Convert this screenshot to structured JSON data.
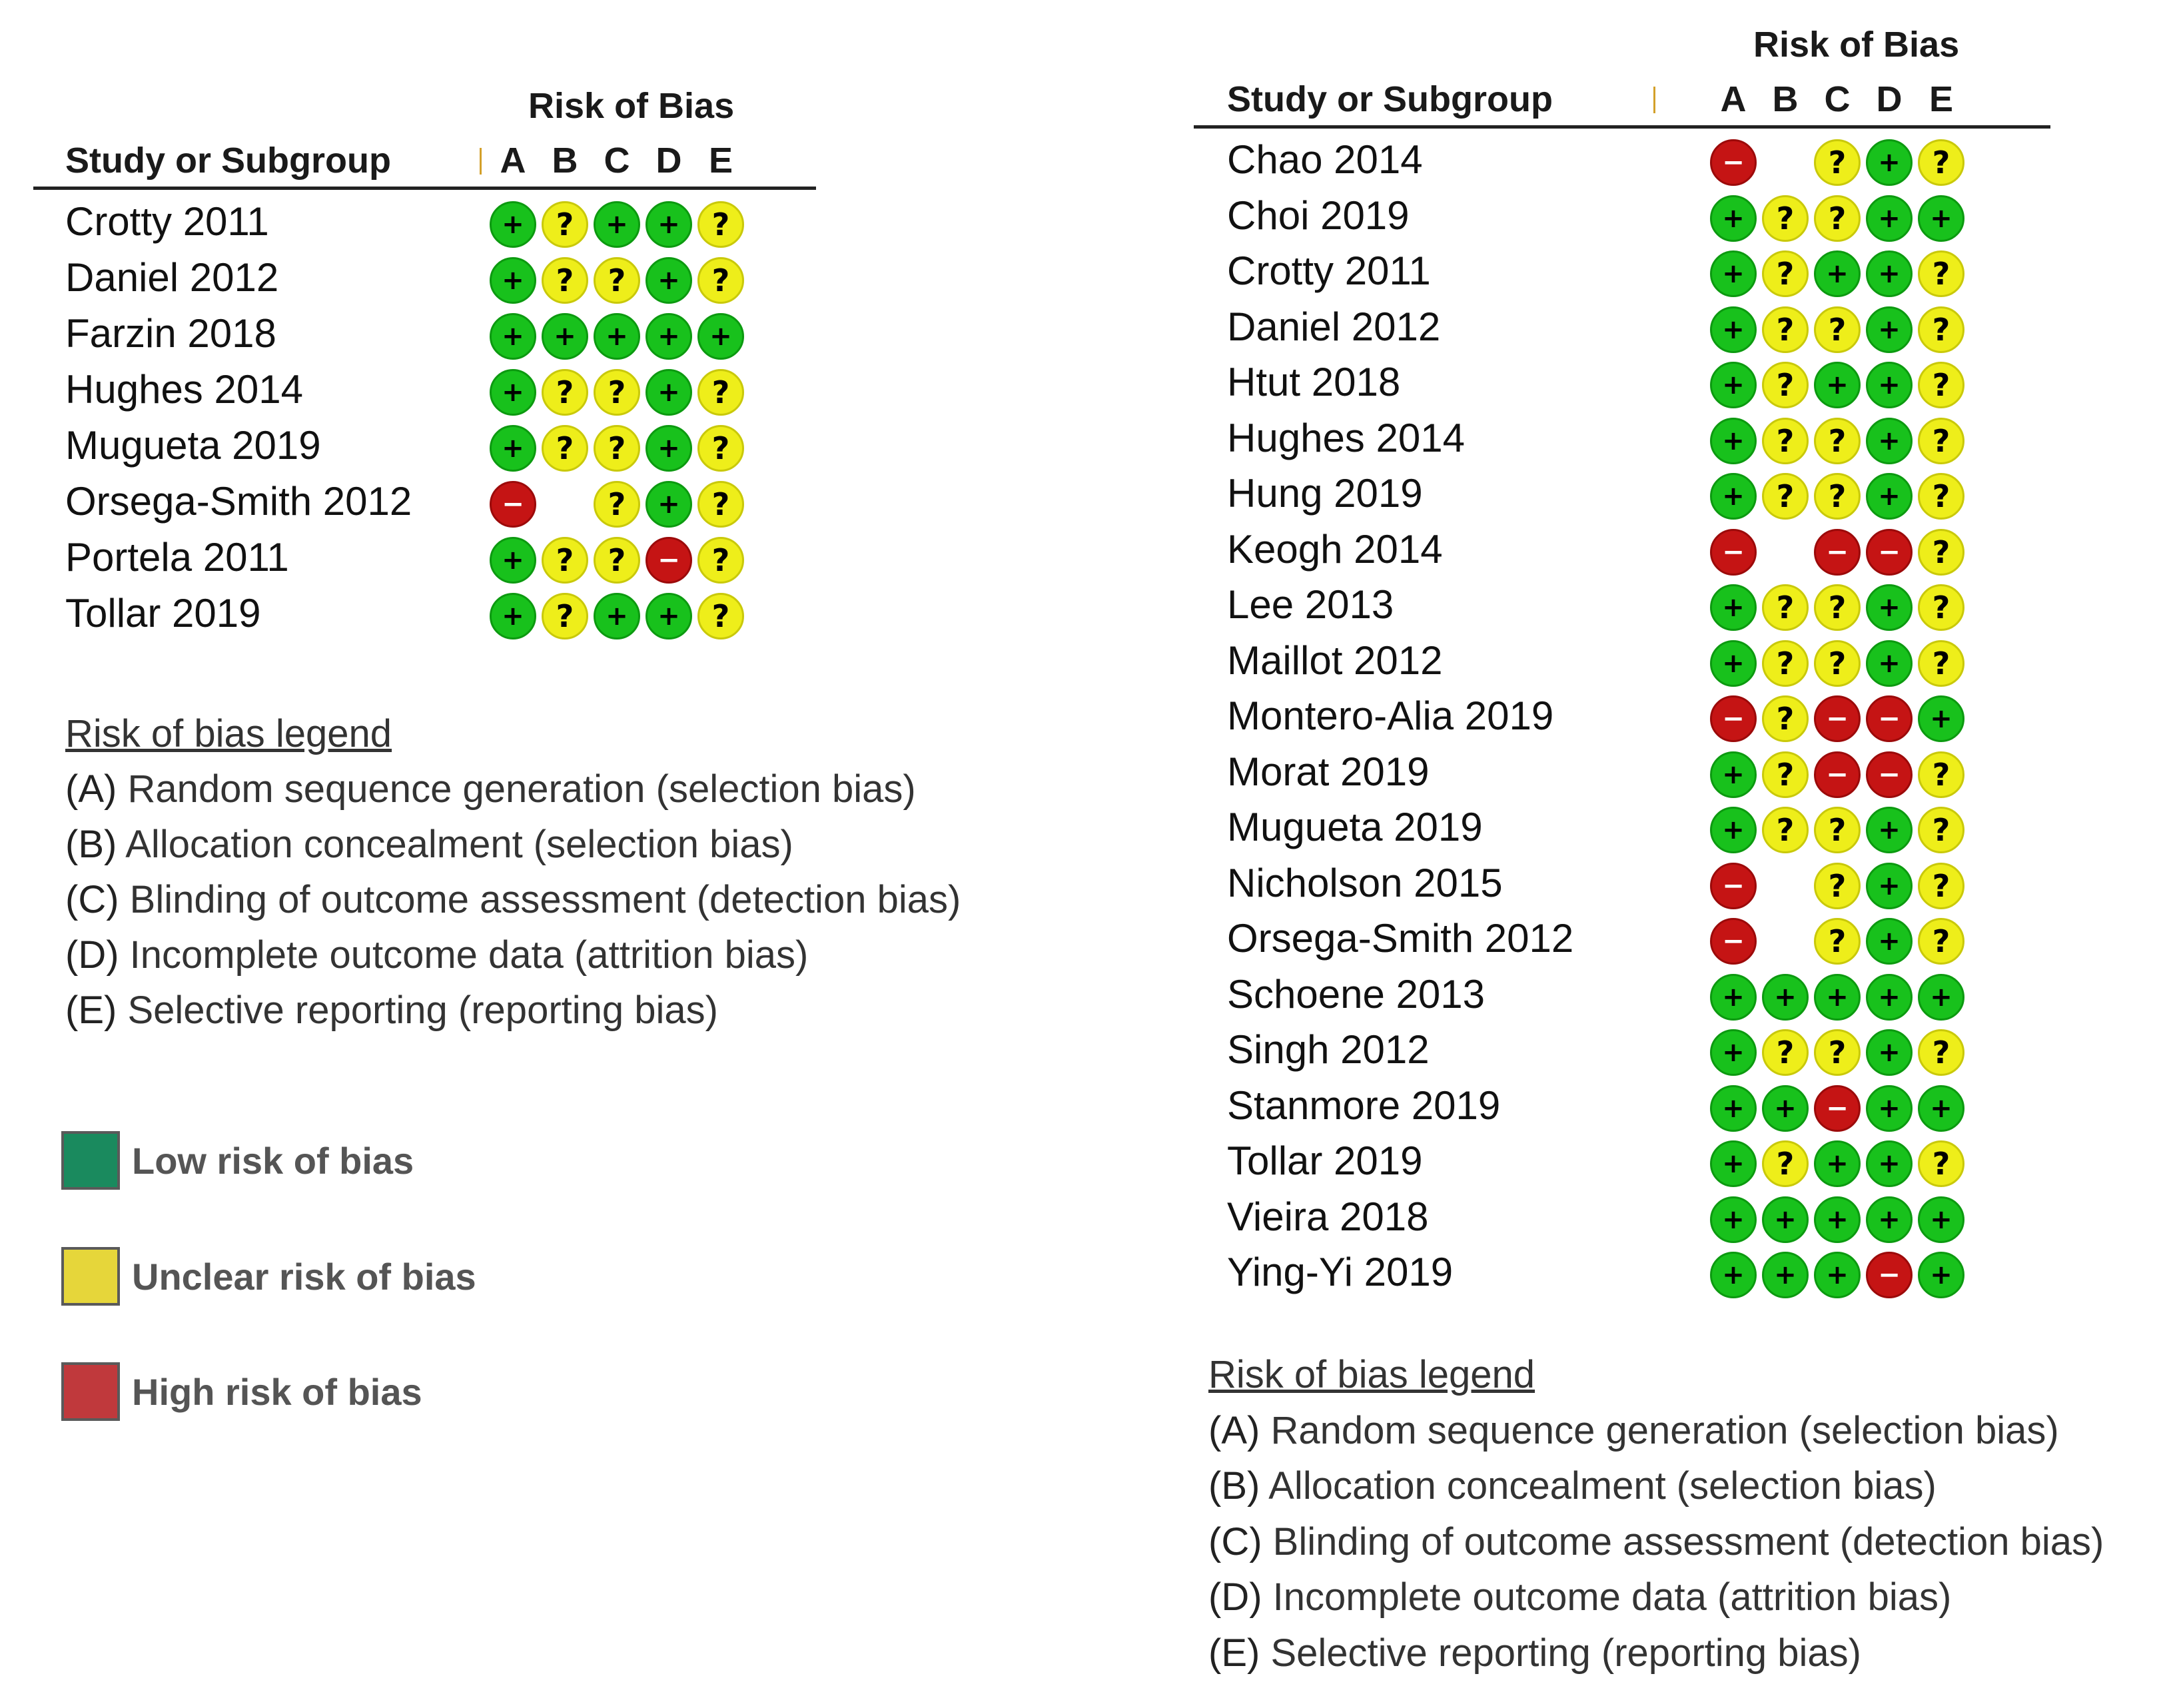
{
  "left_panel": {
    "header": {
      "title": "Risk of Bias",
      "study_label": "Study or Subgroup",
      "domains": [
        "A",
        "B",
        "C",
        "D",
        "E"
      ]
    },
    "studies": [
      {
        "name": "Crotty 2011",
        "ratings": [
          "low",
          "unclear",
          "low",
          "low",
          "unclear"
        ]
      },
      {
        "name": "Daniel 2012",
        "ratings": [
          "low",
          "unclear",
          "unclear",
          "low",
          "unclear"
        ]
      },
      {
        "name": "Farzin 2018",
        "ratings": [
          "low",
          "low",
          "low",
          "low",
          "low"
        ]
      },
      {
        "name": "Hughes 2014",
        "ratings": [
          "low",
          "unclear",
          "unclear",
          "low",
          "unclear"
        ]
      },
      {
        "name": "Mugueta 2019",
        "ratings": [
          "low",
          "unclear",
          "unclear",
          "low",
          "unclear"
        ]
      },
      {
        "name": "Orsega-Smith 2012",
        "ratings": [
          "high",
          null,
          "unclear",
          "low",
          "unclear"
        ]
      },
      {
        "name": "Portela 2011",
        "ratings": [
          "low",
          "unclear",
          "unclear",
          "high",
          "unclear"
        ]
      },
      {
        "name": "Tollar 2019",
        "ratings": [
          "low",
          "unclear",
          "low",
          "low",
          "unclear"
        ]
      }
    ],
    "legend": {
      "title": "Risk of bias legend",
      "items": [
        {
          "key": "(A)",
          "text": "Random sequence generation (selection bias)"
        },
        {
          "key": "(B)",
          "text": "Allocation concealment (selection bias)"
        },
        {
          "key": "(C)",
          "text": "Blinding of outcome assessment (detection bias)"
        },
        {
          "key": "(D)",
          "text": "Incomplete outcome data (attrition bias)"
        },
        {
          "key": "(E)",
          "text": "Selective reporting (reporting bias)"
        }
      ]
    },
    "color_key": [
      {
        "label": "Low risk of bias",
        "color": "#1a8a5e"
      },
      {
        "label": "Unclear risk of bias",
        "color": "#e6d63a"
      },
      {
        "label": "High risk of bias",
        "color": "#c0393c"
      }
    ]
  },
  "right_panel": {
    "header": {
      "title": "Risk of Bias",
      "study_label": "Study or Subgroup",
      "domains": [
        "A",
        "B",
        "C",
        "D",
        "E"
      ]
    },
    "studies": [
      {
        "name": "Chao 2014",
        "ratings": [
          "high",
          null,
          "unclear",
          "low",
          "unclear"
        ]
      },
      {
        "name": "Choi 2019",
        "ratings": [
          "low",
          "unclear",
          "unclear",
          "low",
          "low"
        ]
      },
      {
        "name": "Crotty 2011",
        "ratings": [
          "low",
          "unclear",
          "low",
          "low",
          "unclear"
        ]
      },
      {
        "name": "Daniel 2012",
        "ratings": [
          "low",
          "unclear",
          "unclear",
          "low",
          "unclear"
        ]
      },
      {
        "name": "Htut 2018",
        "ratings": [
          "low",
          "unclear",
          "low",
          "low",
          "unclear"
        ]
      },
      {
        "name": "Hughes 2014",
        "ratings": [
          "low",
          "unclear",
          "unclear",
          "low",
          "unclear"
        ]
      },
      {
        "name": "Hung 2019",
        "ratings": [
          "low",
          "unclear",
          "unclear",
          "low",
          "unclear"
        ]
      },
      {
        "name": "Keogh 2014",
        "ratings": [
          "high",
          null,
          "high",
          "high",
          "unclear"
        ]
      },
      {
        "name": "Lee 2013",
        "ratings": [
          "low",
          "unclear",
          "unclear",
          "low",
          "unclear"
        ]
      },
      {
        "name": "Maillot 2012",
        "ratings": [
          "low",
          "unclear",
          "unclear",
          "low",
          "unclear"
        ]
      },
      {
        "name": "Montero-Alia 2019",
        "ratings": [
          "high",
          "unclear",
          "high",
          "high",
          "low"
        ]
      },
      {
        "name": "Morat 2019",
        "ratings": [
          "low",
          "unclear",
          "high",
          "high",
          "unclear"
        ]
      },
      {
        "name": "Mugueta 2019",
        "ratings": [
          "low",
          "unclear",
          "unclear",
          "low",
          "unclear"
        ]
      },
      {
        "name": "Nicholson 2015",
        "ratings": [
          "high",
          null,
          "unclear",
          "low",
          "unclear"
        ]
      },
      {
        "name": "Orsega-Smith 2012",
        "ratings": [
          "high",
          null,
          "unclear",
          "low",
          "unclear"
        ]
      },
      {
        "name": "Schoene 2013",
        "ratings": [
          "low",
          "low",
          "low",
          "low",
          "low"
        ]
      },
      {
        "name": "Singh 2012",
        "ratings": [
          "low",
          "unclear",
          "unclear",
          "low",
          "unclear"
        ]
      },
      {
        "name": "Stanmore 2019",
        "ratings": [
          "low",
          "low",
          "high",
          "low",
          "low"
        ]
      },
      {
        "name": "Tollar 2019",
        "ratings": [
          "low",
          "unclear",
          "low",
          "low",
          "unclear"
        ]
      },
      {
        "name": "Vieira 2018",
        "ratings": [
          "low",
          "low",
          "low",
          "low",
          "low"
        ]
      },
      {
        "name": "Ying-Yi 2019",
        "ratings": [
          "low",
          "low",
          "low",
          "high",
          "low"
        ]
      }
    ],
    "legend": {
      "title": "Risk of bias legend",
      "items": [
        {
          "key": "(A)",
          "text": "Random sequence generation (selection bias)"
        },
        {
          "key": "(B)",
          "text": "Allocation concealment (selection bias)"
        },
        {
          "key": "(C)",
          "text": "Blinding of outcome assessment (detection bias)"
        },
        {
          "key": "(D)",
          "text": "Incomplete outcome data (attrition bias)"
        },
        {
          "key": "(E)",
          "text": "Selective reporting (reporting bias)"
        }
      ]
    }
  },
  "symbols": {
    "low": "+",
    "unclear": "?",
    "high": "−"
  }
}
